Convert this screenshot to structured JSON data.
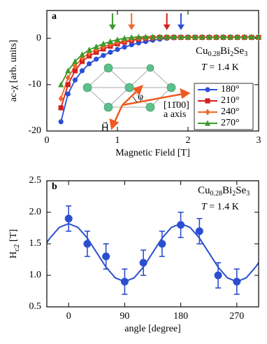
{
  "chart_data": [
    {
      "type": "line",
      "panel_label": "a",
      "xlabel": "Magnetic Field [T]",
      "ylabel": "ac-χ [arb. units]",
      "xlim": [
        0,
        3
      ],
      "ylim": [
        -20,
        6
      ],
      "xticks": [
        0,
        1,
        2,
        3
      ],
      "yticks": [
        -20,
        -10,
        0
      ],
      "legend": "lower right",
      "formula": [
        "Cu",
        "0.28",
        "Bi",
        "2",
        "Se",
        "3"
      ],
      "temperature": [
        "T",
        " = 1.4 K"
      ],
      "inset_labels": [
        "φ",
        "[11̄00]",
        "a axis",
        "H⃗"
      ],
      "arrows": [
        {
          "x": 0.93,
          "color": "#3a9a2a"
        },
        {
          "x": 1.2,
          "color": "#f06a2a"
        },
        {
          "x": 1.7,
          "color": "#d42020"
        },
        {
          "x": 1.9,
          "color": "#2a4fd6"
        }
      ],
      "x": [
        0.2,
        0.3,
        0.4,
        0.5,
        0.6,
        0.7,
        0.8,
        0.9,
        1.0,
        1.1,
        1.2,
        1.3,
        1.4,
        1.5,
        1.6,
        1.7,
        1.8,
        1.9,
        2.0,
        2.1,
        2.2,
        2.3,
        2.4,
        2.5,
        2.6,
        2.7,
        2.8,
        2.9,
        3.0
      ],
      "series": [
        {
          "name": "180°",
          "color": "#2a4fd6",
          "marker": "circle",
          "values": [
            -18,
            -12,
            -9,
            -7,
            -5.5,
            -4.5,
            -3.7,
            -3,
            -2.4,
            -1.9,
            -1.4,
            -1,
            -0.7,
            -0.4,
            -0.2,
            0,
            0.1,
            0.2,
            0.2,
            0.2,
            0.2,
            0.2,
            0.2,
            0.2,
            0.2,
            0.2,
            0.2,
            0.2,
            0.2
          ]
        },
        {
          "name": "210°",
          "color": "#d42020",
          "marker": "square",
          "values": [
            -15,
            -10,
            -7,
            -5,
            -3.8,
            -3,
            -2.3,
            -1.7,
            -1.2,
            -0.8,
            -0.5,
            -0.2,
            0,
            0.1,
            0.2,
            0.2,
            0.2,
            0.2,
            0.2,
            0.2,
            0.2,
            0.2,
            0.2,
            0.2,
            0.2,
            0.2,
            0.2,
            0.2,
            0.2
          ]
        },
        {
          "name": "240°",
          "color": "#f06a2a",
          "marker": "diamond",
          "values": [
            -13,
            -8.5,
            -6,
            -4.3,
            -3.2,
            -2.4,
            -1.8,
            -1.3,
            -0.9,
            -0.5,
            -0.2,
            0,
            0.1,
            0.2,
            0.2,
            0.2,
            0.2,
            0.2,
            0.2,
            0.2,
            0.2,
            0.2,
            0.2,
            0.2,
            0.2,
            0.2,
            0.2,
            0.2,
            0.2
          ]
        },
        {
          "name": "270°",
          "color": "#3a9a2a",
          "marker": "triangle",
          "values": [
            -10,
            -7,
            -5,
            -3.5,
            -2.5,
            -1.8,
            -1.2,
            -0.7,
            -0.3,
            0,
            0.2,
            0.3,
            0.3,
            0.3,
            0.3,
            0.3,
            0.3,
            0.3,
            0.3,
            0.3,
            0.3,
            0.3,
            0.3,
            0.3,
            0.3,
            0.3,
            0.3,
            0.3,
            0.3
          ]
        }
      ]
    },
    {
      "type": "scatter",
      "panel_label": "b",
      "xlabel": "angle [degree]",
      "ylabel": [
        "H",
        "c2",
        " [T]"
      ],
      "xlim": [
        -35,
        305
      ],
      "ylim": [
        0.5,
        2.5
      ],
      "xticks": [
        0,
        90,
        180,
        270
      ],
      "yticks": [
        0.5,
        {
          "value": 1,
          "label": "1.0"
        },
        1.5,
        {
          "value": 2,
          "label": "2.0"
        },
        2.5
      ],
      "formula": [
        "Cu",
        "0.28",
        "Bi",
        "2",
        "Se",
        "3"
      ],
      "temperature": [
        "T",
        " = 1.4 K"
      ],
      "color": "#2c4fd0",
      "points": {
        "x": [
          0,
          30,
          60,
          90,
          120,
          150,
          180,
          210,
          240,
          270
        ],
        "values": [
          1.9,
          1.5,
          1.3,
          0.9,
          1.2,
          1.5,
          1.8,
          1.7,
          1.0,
          0.9
        ],
        "errors": [
          0.2,
          0.2,
          0.2,
          0.2,
          0.2,
          0.2,
          0.2,
          0.2,
          0.2,
          0.2
        ]
      },
      "curve": {
        "x": [
          -35,
          -30,
          -15,
          0,
          15,
          30,
          45,
          60,
          75,
          90,
          105,
          120,
          135,
          150,
          165,
          180,
          195,
          210,
          225,
          240,
          255,
          270,
          285,
          300,
          305
        ],
        "values": [
          1.52,
          1.59,
          1.76,
          1.82,
          1.76,
          1.59,
          1.36,
          1.13,
          0.96,
          0.9,
          0.96,
          1.13,
          1.36,
          1.59,
          1.76,
          1.82,
          1.76,
          1.59,
          1.36,
          1.13,
          0.96,
          0.9,
          0.96,
          1.13,
          1.2
        ]
      }
    }
  ]
}
